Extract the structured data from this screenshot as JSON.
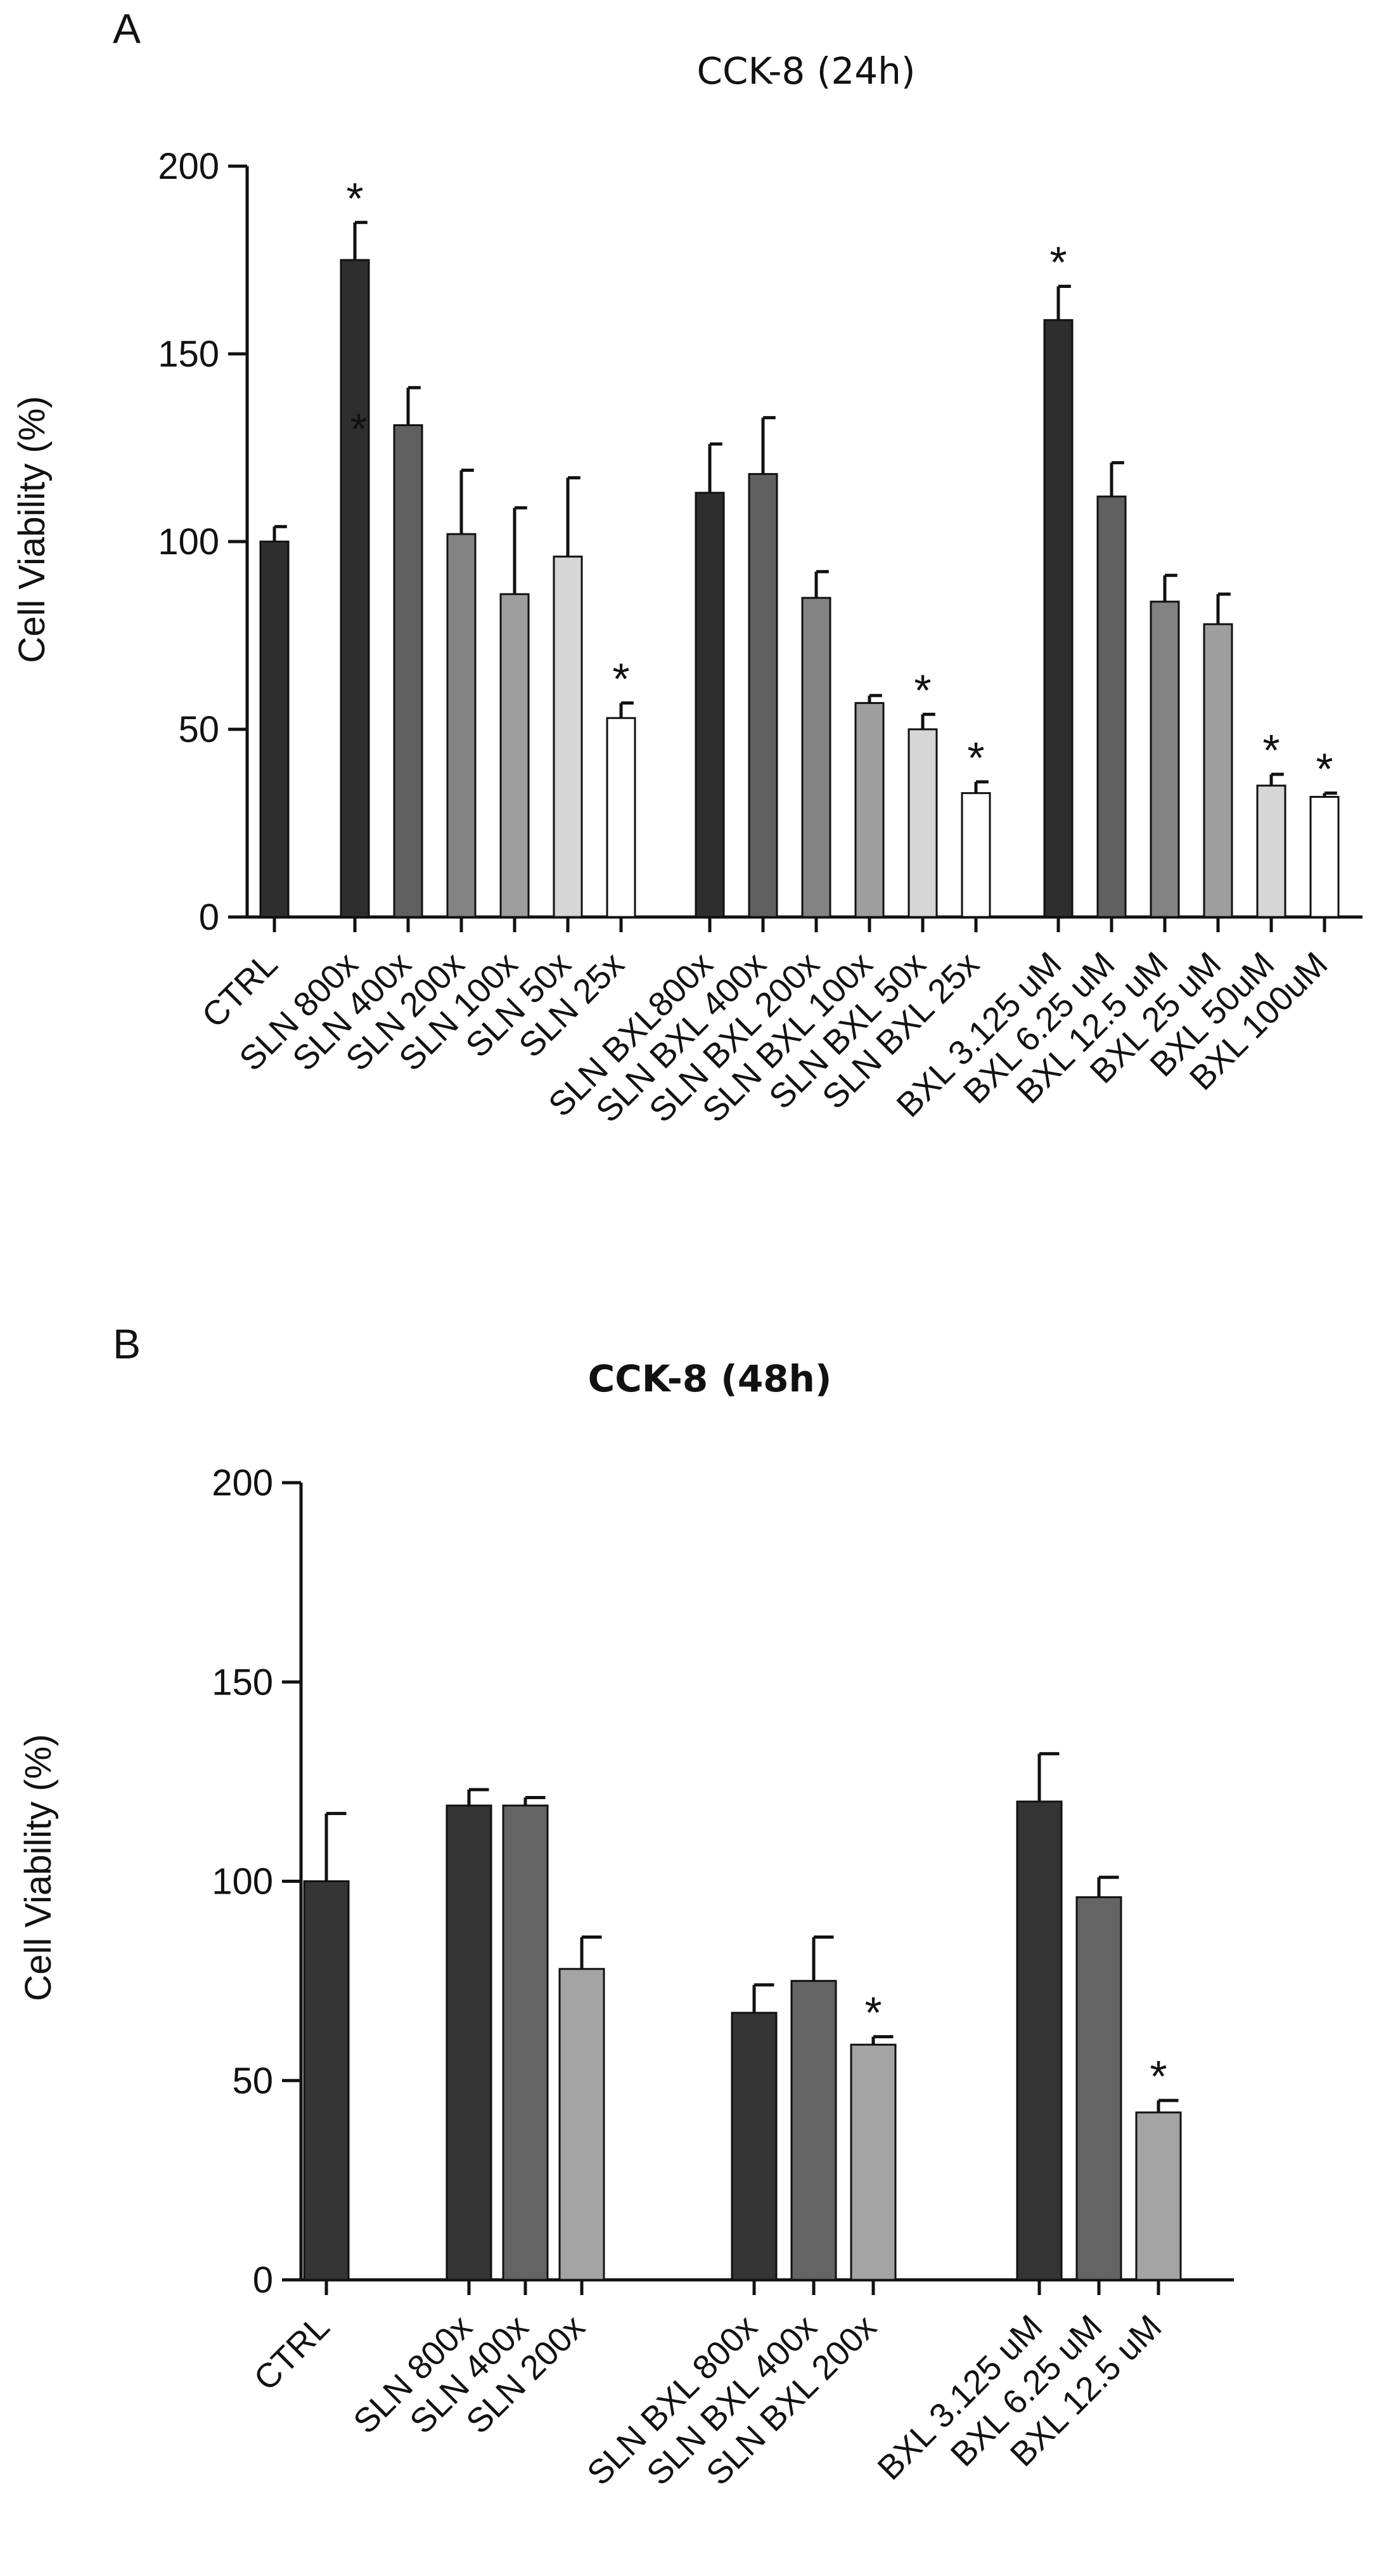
{
  "chart_data": [
    {
      "panel": "A",
      "type": "bar",
      "title": "CCK-8 (24h)",
      "xlabel": "",
      "ylabel": "Cell Viability (%)",
      "ylim": [
        0,
        200
      ],
      "yticks": [
        0,
        50,
        100,
        150,
        200
      ],
      "grid": false,
      "legend": "none",
      "categories": [
        "CTRL",
        "SLN 800x",
        "SLN 400x",
        "SLN 200x",
        "SLN 100x",
        "SLN 50x",
        "SLN 25x",
        "SLN BXL800x",
        "SLN BXL 400x",
        "SLN BXL 200x",
        "SLN BXL 100x",
        "SLN BXL 50x",
        "SLN BXL 25x",
        "BXL 3.125 uM",
        "BXL 6.25 uM",
        "BXL 12.5 uM",
        "BXL 25 uM",
        "BXL 50uM",
        "BXL 100uM"
      ],
      "values": [
        100,
        175,
        131,
        102,
        86,
        96,
        53,
        113,
        118,
        85,
        57,
        50,
        33,
        159,
        112,
        84,
        78,
        35,
        32
      ],
      "errors": [
        4,
        10,
        10,
        17,
        23,
        21,
        4,
        13,
        15,
        7,
        2,
        4,
        3,
        9,
        9,
        7,
        8,
        3,
        1
      ],
      "groups": [
        [
          0
        ],
        [
          1,
          2,
          3,
          4,
          5,
          6
        ],
        [
          7,
          8,
          9,
          10,
          11,
          12
        ],
        [
          13,
          14,
          15,
          16,
          17,
          18
        ]
      ],
      "bar_colors": [
        "#2e2e2e",
        "#2e2e2e",
        "#606060",
        "#838383",
        "#9e9e9e",
        "#d6d6d6",
        "#ffffff",
        "#2e2e2e",
        "#606060",
        "#838383",
        "#9e9e9e",
        "#d6d6d6",
        "#ffffff",
        "#2e2e2e",
        "#606060",
        "#838383",
        "#9e9e9e",
        "#d6d6d6",
        "#ffffff"
      ],
      "significance": "*",
      "significant_indices": [
        1,
        6,
        11,
        12,
        13,
        17,
        18
      ],
      "extra_annotation": {
        "index": 1,
        "value": 130,
        "text": "*"
      }
    },
    {
      "panel": "B",
      "type": "bar",
      "title": "CCK-8 (48h)",
      "xlabel": "",
      "ylabel": "Cell Viability (%)",
      "ylim": [
        0,
        200
      ],
      "yticks": [
        0,
        50,
        100,
        150,
        200
      ],
      "grid": false,
      "legend": "none",
      "categories": [
        "CTRL",
        "SLN 800x",
        "SLN 400x",
        "SLN 200x",
        "SLN BXL 800x",
        "SLN BXL 400x",
        "SLN BXL 200x",
        "BXL 3.125 uM",
        "BXL 6.25 uM",
        "BXL 12.5 uM"
      ],
      "values": [
        100,
        119,
        119,
        78,
        67,
        75,
        59,
        120,
        96,
        42
      ],
      "errors": [
        17,
        4,
        2,
        8,
        7,
        11,
        2,
        12,
        5,
        3
      ],
      "groups": [
        [
          0
        ],
        [
          1,
          2,
          3
        ],
        [
          4,
          5,
          6
        ],
        [
          7,
          8,
          9
        ]
      ],
      "bar_colors": [
        "#343434",
        "#343434",
        "#646464",
        "#a4a4a4",
        "#343434",
        "#646464",
        "#a4a4a4",
        "#343434",
        "#646464",
        "#a4a4a4"
      ],
      "significance": "*",
      "significant_indices": [
        6,
        9
      ]
    }
  ]
}
